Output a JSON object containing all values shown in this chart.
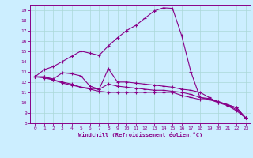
{
  "xlabel": "Windchill (Refroidissement éolien,°C)",
  "bg_color": "#cceeff",
  "line_color": "#880088",
  "grid_color": "#aad8d8",
  "spine_color": "#880088",
  "xlim": [
    -0.5,
    23.5
  ],
  "ylim": [
    8,
    19.5
  ],
  "xticks": [
    0,
    1,
    2,
    3,
    4,
    5,
    6,
    7,
    8,
    9,
    10,
    11,
    12,
    13,
    14,
    15,
    16,
    17,
    18,
    19,
    20,
    21,
    22,
    23
  ],
  "yticks": [
    8,
    9,
    10,
    11,
    12,
    13,
    14,
    15,
    16,
    17,
    18,
    19
  ],
  "line1_x": [
    0,
    1,
    2,
    3,
    4,
    5,
    6,
    7,
    8,
    9,
    10,
    11,
    12,
    13,
    14,
    15,
    16,
    17,
    18,
    19,
    20,
    21,
    22,
    23
  ],
  "line1_y": [
    12.5,
    13.2,
    13.5,
    14.0,
    14.5,
    15.0,
    14.8,
    14.6,
    15.5,
    16.3,
    17.0,
    17.5,
    18.2,
    18.9,
    19.2,
    19.15,
    16.5,
    13.0,
    10.5,
    10.3,
    10.1,
    9.8,
    9.5,
    8.5
  ],
  "line2_x": [
    0,
    1,
    2,
    3,
    4,
    5,
    6,
    7,
    8,
    9,
    10,
    11,
    12,
    13,
    14,
    15,
    16,
    17,
    18,
    19,
    20,
    21,
    22,
    23
  ],
  "line2_y": [
    12.5,
    12.5,
    12.3,
    12.9,
    12.8,
    12.6,
    11.6,
    11.3,
    13.3,
    12.0,
    12.0,
    11.9,
    11.8,
    11.7,
    11.6,
    11.5,
    11.3,
    11.2,
    11.0,
    10.5,
    10.0,
    9.8,
    9.5,
    8.5
  ],
  "line3_x": [
    0,
    1,
    2,
    3,
    4,
    5,
    6,
    7,
    8,
    9,
    10,
    11,
    12,
    13,
    14,
    15,
    16,
    17,
    18,
    19,
    20,
    21,
    22,
    23
  ],
  "line3_y": [
    12.5,
    12.5,
    12.2,
    12.0,
    11.8,
    11.5,
    11.4,
    11.3,
    11.8,
    11.6,
    11.5,
    11.4,
    11.3,
    11.2,
    11.2,
    11.1,
    11.0,
    10.8,
    10.5,
    10.4,
    10.1,
    9.8,
    9.3,
    8.5
  ],
  "line4_x": [
    0,
    1,
    2,
    3,
    4,
    5,
    6,
    7,
    8,
    9,
    10,
    11,
    12,
    13,
    14,
    15,
    16,
    17,
    18,
    19,
    20,
    21,
    22,
    23
  ],
  "line4_y": [
    12.5,
    12.4,
    12.2,
    11.9,
    11.7,
    11.5,
    11.3,
    11.1,
    11.0,
    11.0,
    11.0,
    11.0,
    11.0,
    11.0,
    11.0,
    11.0,
    10.7,
    10.5,
    10.3,
    10.3,
    10.0,
    9.7,
    9.2,
    8.5
  ]
}
